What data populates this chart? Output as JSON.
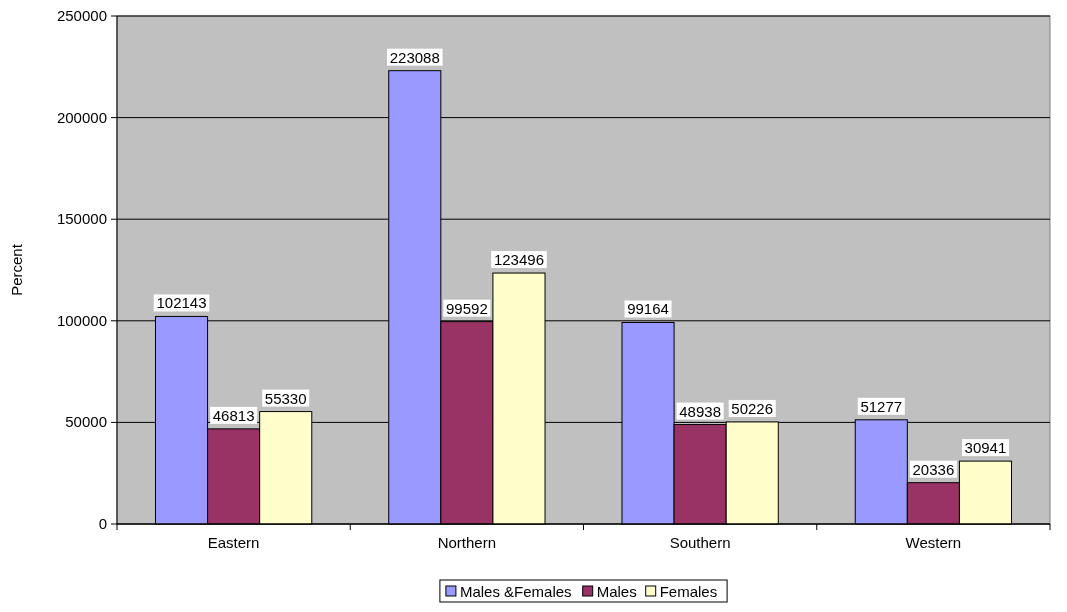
{
  "chart_data": {
    "type": "bar",
    "ylabel": "Percent",
    "categories": [
      "Eastern",
      "Northern",
      "Southern",
      "Western"
    ],
    "series": [
      {
        "name": "Males &Females",
        "color": "#9999ff",
        "values": [
          102143,
          223088,
          99164,
          51277
        ]
      },
      {
        "name": "Males",
        "color": "#993366",
        "values": [
          46813,
          99592,
          48938,
          20336
        ]
      },
      {
        "name": "Females",
        "color": "#ffffcc",
        "values": [
          55330,
          123496,
          50226,
          30941
        ]
      }
    ],
    "ylim": [
      0,
      250000
    ],
    "yticks": [
      0,
      50000,
      100000,
      150000,
      200000,
      250000
    ],
    "grid": "y",
    "legend": "bottom",
    "data_labels": true
  }
}
